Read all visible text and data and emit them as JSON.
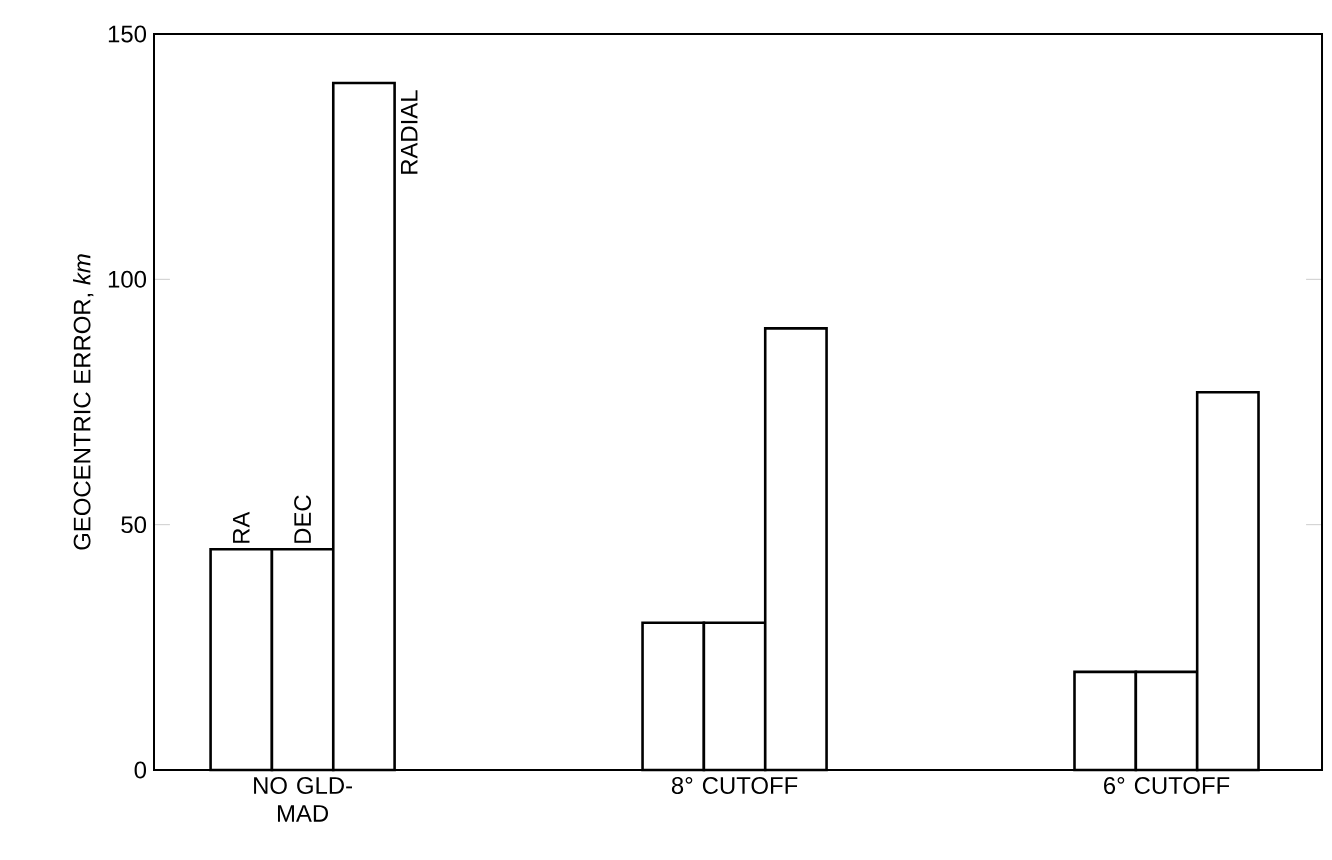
{
  "chart_data": {
    "type": "bar",
    "ylabel": "GEOCENTRIC ERROR, *km*",
    "categories": [
      "NO GLD-MAD",
      "8° CUTOFF",
      "6° CUTOFF"
    ],
    "series": [
      {
        "name": "RA",
        "color": "#000000",
        "values": [
          45,
          30,
          20
        ]
      },
      {
        "name": "DEC",
        "color": "#000000",
        "values": [
          45,
          30,
          20
        ]
      },
      {
        "name": "RADIAL",
        "color": "#000000",
        "values": [
          140,
          90,
          77
        ]
      }
    ],
    "ylim": [
      0,
      150
    ],
    "yticks": [
      0,
      50,
      100,
      150
    ],
    "grid": false
  }
}
